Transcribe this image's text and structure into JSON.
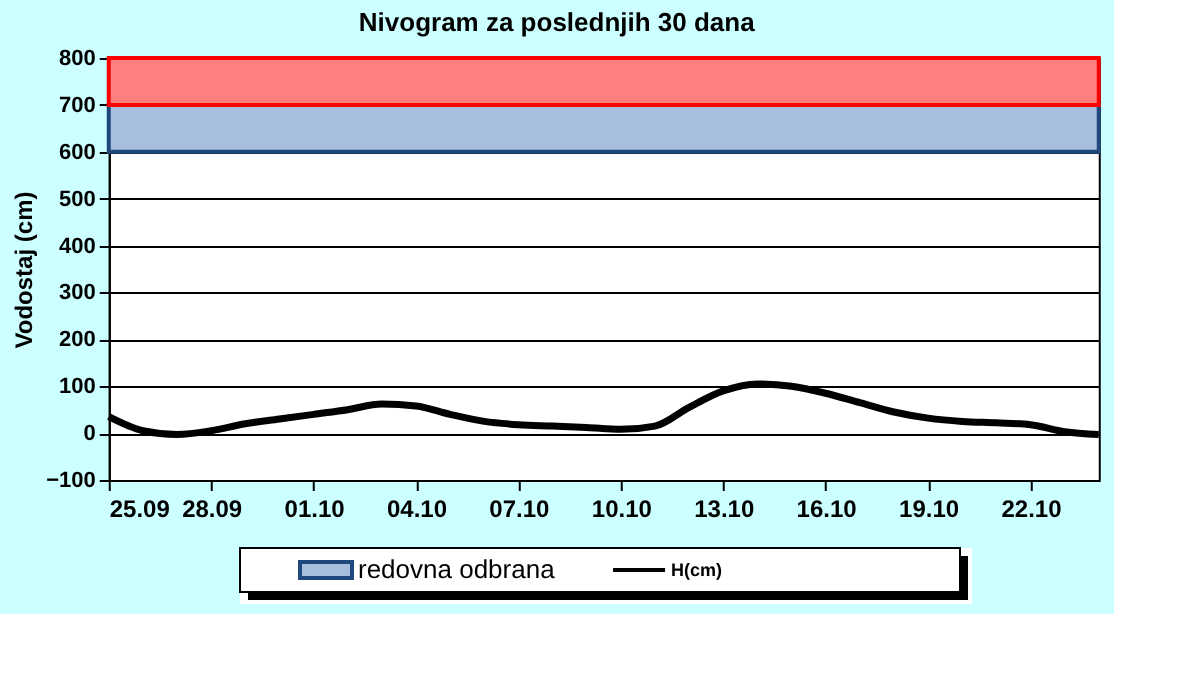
{
  "chart_data": {
    "type": "line",
    "title": "Nivogram za poslednjih 30 dana",
    "ylabel": "Vodostaj (cm)",
    "x": [
      "--09-25",
      "--09-26",
      "--09-27",
      "--09-28",
      "--09-29",
      "--09-30",
      "--10-01",
      "--10-02",
      "--10-03",
      "--10-04",
      "--10-05",
      "--10-06",
      "--10-07",
      "--10-08",
      "--10-09",
      "--10-10",
      "--10-11",
      "--10-12",
      "--10-13",
      "--10-14",
      "--10-15",
      "--10-16",
      "--10-17",
      "--10-18",
      "--10-19",
      "--10-20",
      "--10-21",
      "--10-22",
      "--10-23",
      "--10-24"
    ],
    "series": [
      {
        "name": "H(cm)",
        "color": "#000000",
        "values": [
          35,
          5,
          -3,
          5,
          20,
          30,
          40,
          50,
          62,
          58,
          40,
          25,
          18,
          15,
          12,
          8,
          15,
          55,
          90,
          105,
          100,
          85,
          65,
          45,
          32,
          25,
          22,
          18,
          3,
          -3
        ]
      }
    ],
    "xlim": [
      "--09-25",
      "--10-24"
    ],
    "xticks": [
      {
        "value": "--09-25",
        "label": "25.09"
      },
      {
        "value": "--09-28",
        "label": "28.09"
      },
      {
        "value": "--10-01",
        "label": "01.10"
      },
      {
        "value": "--10-04",
        "label": "04.10"
      },
      {
        "value": "--10-07",
        "label": "07.10"
      },
      {
        "value": "--10-10",
        "label": "10.10"
      },
      {
        "value": "--10-13",
        "label": "13.10"
      },
      {
        "value": "--10-16",
        "label": "16.10"
      },
      {
        "value": "--10-19",
        "label": "19.10"
      },
      {
        "value": "--10-22",
        "label": "22.10"
      }
    ],
    "ylim": [
      -100,
      800
    ],
    "yticks": [
      -100,
      0,
      100,
      200,
      300,
      400,
      500,
      600,
      700,
      800
    ],
    "grid": "y",
    "bands": [
      {
        "axis": "y",
        "from": 600,
        "to": 700,
        "label": "redovna odbrana",
        "color": "#a6bfdf"
      },
      {
        "axis": "y",
        "from": 700,
        "to": 800,
        "color": "#ff7f7f"
      }
    ],
    "legend": "bottom",
    "line_style": "solid",
    "marker": "none"
  }
}
